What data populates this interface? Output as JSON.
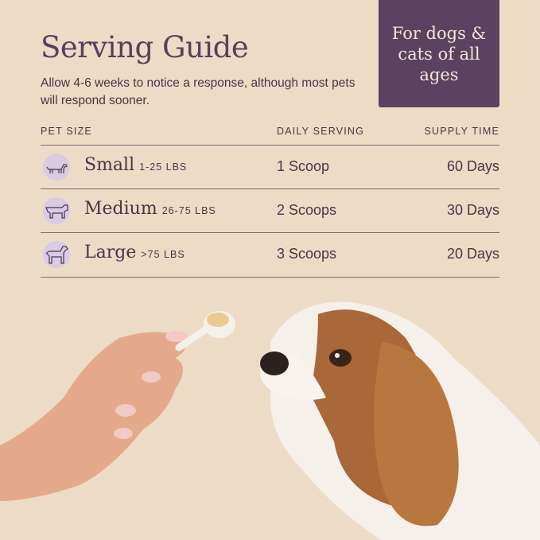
{
  "title": "Serving Guide",
  "subtitle": "Allow 4-6 weeks to notice a response, although most pets will respond sooner.",
  "badge": "For dogs & cats of all ages",
  "table": {
    "headers": [
      "PET SIZE",
      "DAILY SERVING",
      "SUPPLY TIME"
    ],
    "rows": [
      {
        "icon": "small-dog-icon",
        "size": "Small",
        "range": "1-25 LBS",
        "serving": "1 Scoop",
        "supply": "60 Days"
      },
      {
        "icon": "medium-dog-icon",
        "size": "Medium",
        "range": "26-75 LBS",
        "serving": "2 Scoops",
        "supply": "30 Days"
      },
      {
        "icon": "large-dog-icon",
        "size": "Large",
        "range": ">75 LBS",
        "serving": "3 Scoops",
        "supply": "20 Days"
      }
    ]
  },
  "colors": {
    "background": "#ecdcc6",
    "accent": "#5b4260",
    "text": "#4a3446",
    "icon_circle": "#d9cbe4"
  }
}
